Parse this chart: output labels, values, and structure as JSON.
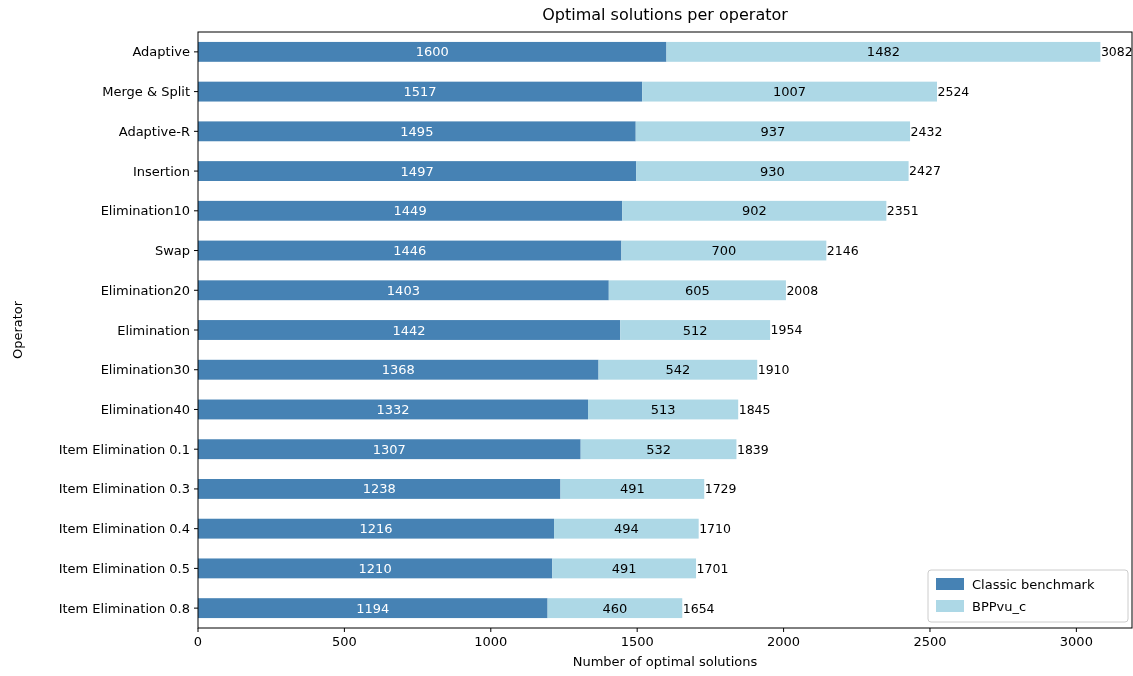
{
  "chart_data": {
    "type": "bar",
    "orientation": "horizontal",
    "stacked": true,
    "title": "Optimal solutions per operator",
    "xlabel": "Number of optimal solutions",
    "ylabel": "Operator",
    "categories": [
      "Adaptive",
      "Merge & Split",
      "Adaptive-R",
      "Insertion",
      "Elimination10",
      "Swap",
      "Elimination20",
      "Elimination",
      "Elimination30",
      "Elimination40",
      "Item Elimination 0.1",
      "Item Elimination 0.3",
      "Item Elimination 0.4",
      "Item Elimination 0.5",
      "Item Elimination 0.8"
    ],
    "series": [
      {
        "name": "Classic benchmark",
        "color": "#4682b4",
        "values": [
          1600,
          1517,
          1495,
          1497,
          1449,
          1446,
          1403,
          1442,
          1368,
          1332,
          1307,
          1238,
          1216,
          1210,
          1194
        ]
      },
      {
        "name": "BPPvu_c",
        "color": "#add8e6",
        "values": [
          1482,
          1007,
          937,
          930,
          902,
          700,
          605,
          512,
          542,
          513,
          532,
          491,
          494,
          491,
          460
        ]
      }
    ],
    "totals": [
      "3082",
      "2524",
      "2432",
      "2427",
      "2351",
      "2146",
      "2008",
      "1954",
      "1910",
      "1845",
      "1839",
      "1729",
      "1710",
      "1701",
      "1654"
    ],
    "data_labels": true,
    "xlim": [
      0,
      3190
    ],
    "xticks": [
      0,
      500,
      1000,
      1500,
      2000,
      2500,
      3000
    ],
    "grid": false,
    "legend": "bottom right"
  }
}
